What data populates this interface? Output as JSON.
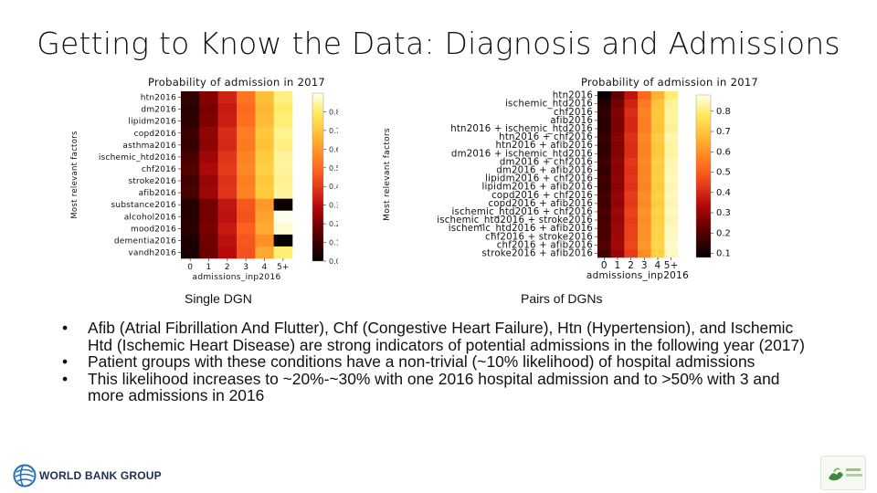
{
  "slide": {
    "title": "Getting to Know the Data: Diagnosis and Admissions"
  },
  "captions": {
    "left": "Single DGN",
    "right": "Pairs of DGNs"
  },
  "bullets": [
    "Afib (Atrial Fibrillation And Flutter), Chf (Congestive Heart Failure), Htn (Hypertension), and Ischemic Htd (Ischemic Heart Disease) are strong indicators of potential admissions in the following year (2017)",
    "Patient groups with these conditions have a non-trivial (~10% likelihood) of hospital admissions",
    "This likelihood increases to ~20%-~30% with one 2016 hospital admission and to >50% with 3 and more admissions in 2016"
  ],
  "logos": {
    "left_text": "WORLD BANK GROUP",
    "left_icon": "globe-icon",
    "right_icon": "partner-logo-icon"
  },
  "colors": {
    "colormap": [
      "#000000",
      "#3d0000",
      "#7a0000",
      "#b80c0c",
      "#e63a1b",
      "#ff6a1f",
      "#ff9a2a",
      "#ffc83c",
      "#ffec66",
      "#ffffee"
    ]
  },
  "chart_data": [
    {
      "type": "heatmap",
      "title": "Probability of admission in 2017",
      "xlabel": "admissions_inp2016",
      "ylabel": "Most relevant factors",
      "x_categories": [
        "0",
        "1",
        "2",
        "3",
        "4",
        "5+"
      ],
      "y_categories": [
        "htn2016",
        "dm2016",
        "lipidm2016",
        "copd2016",
        "asthma2016",
        "ischemic_htd2016",
        "chf2016",
        "stroke2016",
        "afib2016",
        "substance2016",
        "alcohol2016",
        "mood2016",
        "dementia2016",
        "vandh2016"
      ],
      "colorbar": {
        "ticks": [
          "0.0",
          "0.1",
          "0.2",
          "0.3",
          "0.4",
          "0.5",
          "0.6",
          "0.7",
          "0.8"
        ],
        "range": [
          0.0,
          0.9
        ]
      },
      "values": [
        [
          0.08,
          0.22,
          0.35,
          0.52,
          0.68,
          0.82
        ],
        [
          0.07,
          0.2,
          0.33,
          0.5,
          0.66,
          0.8
        ],
        [
          0.07,
          0.21,
          0.34,
          0.51,
          0.67,
          0.81
        ],
        [
          0.1,
          0.24,
          0.37,
          0.54,
          0.7,
          0.83
        ],
        [
          0.09,
          0.23,
          0.36,
          0.53,
          0.69,
          0.82
        ],
        [
          0.12,
          0.26,
          0.39,
          0.55,
          0.71,
          0.84
        ],
        [
          0.14,
          0.28,
          0.4,
          0.56,
          0.72,
          0.84
        ],
        [
          0.11,
          0.25,
          0.38,
          0.54,
          0.7,
          0.83
        ],
        [
          0.12,
          0.26,
          0.39,
          0.55,
          0.71,
          0.84
        ],
        [
          0.06,
          0.19,
          0.32,
          0.46,
          0.6,
          0.02
        ],
        [
          0.06,
          0.19,
          0.31,
          0.45,
          0.62,
          0.9
        ],
        [
          0.07,
          0.2,
          0.33,
          0.48,
          0.64,
          0.88
        ],
        [
          0.05,
          0.18,
          0.31,
          0.46,
          0.58,
          0.01
        ],
        [
          0.04,
          0.17,
          0.3,
          0.45,
          0.63,
          0.81
        ]
      ]
    },
    {
      "type": "heatmap",
      "title": "Probability of admission in 2017",
      "xlabel": "admissions_inp2016",
      "ylabel": "Most relevant factors",
      "x_categories": [
        "0",
        "1",
        "2",
        "3",
        "4",
        "5+"
      ],
      "y_categories": [
        "htn2016",
        "ischemic_htd2016",
        "chf2016",
        "afib2016",
        "htn2016 + ischemic_htd2016",
        "htn2016 + chf2016",
        "htn2016 + afib2016",
        "dm2016 + ischemic_htd2016",
        "dm2016 + chf2016",
        "dm2016 + afib2016",
        "lipidm2016 + chf2016",
        "lipidm2016 + afib2016",
        "copd2016 + chf2016",
        "copd2016 + afib2016",
        "ischemic_htd2016 + chf2016",
        "ischemic_htd2016 + stroke2016",
        "ischemic_htd2016 + afib2016",
        "chf2016 + stroke2016",
        "chf2016 + afib2016",
        "stroke2016 + afib2016"
      ],
      "colorbar": {
        "ticks": [
          "0.1",
          "0.2",
          "0.3",
          "0.4",
          "0.5",
          "0.6",
          "0.7",
          "0.8"
        ],
        "range": [
          0.08,
          0.88
        ]
      },
      "values": [
        [
          0.1,
          0.22,
          0.36,
          0.52,
          0.66,
          0.8
        ],
        [
          0.13,
          0.25,
          0.39,
          0.55,
          0.69,
          0.82
        ],
        [
          0.15,
          0.27,
          0.41,
          0.57,
          0.7,
          0.83
        ],
        [
          0.14,
          0.26,
          0.4,
          0.56,
          0.7,
          0.83
        ],
        [
          0.14,
          0.26,
          0.4,
          0.56,
          0.69,
          0.82
        ],
        [
          0.16,
          0.28,
          0.42,
          0.58,
          0.71,
          0.84
        ],
        [
          0.15,
          0.27,
          0.41,
          0.57,
          0.7,
          0.83
        ],
        [
          0.15,
          0.27,
          0.41,
          0.57,
          0.7,
          0.83
        ],
        [
          0.17,
          0.29,
          0.43,
          0.58,
          0.72,
          0.84
        ],
        [
          0.16,
          0.28,
          0.42,
          0.57,
          0.71,
          0.84
        ],
        [
          0.17,
          0.29,
          0.43,
          0.58,
          0.72,
          0.85
        ],
        [
          0.16,
          0.28,
          0.42,
          0.57,
          0.71,
          0.84
        ],
        [
          0.18,
          0.3,
          0.44,
          0.59,
          0.72,
          0.85
        ],
        [
          0.17,
          0.29,
          0.43,
          0.58,
          0.71,
          0.84
        ],
        [
          0.19,
          0.31,
          0.45,
          0.6,
          0.73,
          0.85
        ],
        [
          0.18,
          0.3,
          0.44,
          0.59,
          0.72,
          0.84
        ],
        [
          0.19,
          0.31,
          0.45,
          0.6,
          0.73,
          0.85
        ],
        [
          0.19,
          0.31,
          0.45,
          0.6,
          0.73,
          0.85
        ],
        [
          0.2,
          0.32,
          0.46,
          0.61,
          0.74,
          0.86
        ],
        [
          0.18,
          0.3,
          0.44,
          0.59,
          0.72,
          0.85
        ]
      ]
    }
  ]
}
